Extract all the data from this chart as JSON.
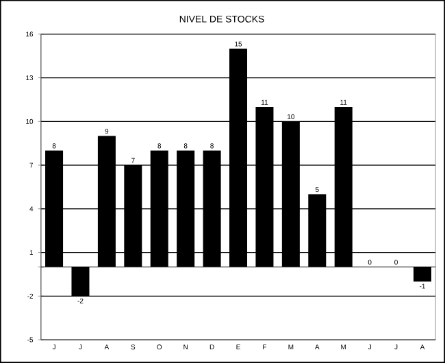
{
  "chart_data": {
    "type": "bar",
    "title": "NIVEL DE STOCKS",
    "categories": [
      "J",
      "J",
      "A",
      "S",
      "O",
      "N",
      "D",
      "E",
      "F",
      "M",
      "A",
      "M",
      "J",
      "J",
      "A"
    ],
    "values": [
      8,
      -2,
      9,
      7,
      8,
      8,
      8,
      15,
      11,
      10,
      5,
      11,
      0,
      0,
      -1
    ],
    "color": "#000000",
    "data_labels": true,
    "grid": "y",
    "ylim": [
      -5,
      16
    ],
    "yticks": [
      -5,
      -2,
      1,
      4,
      7,
      10,
      13,
      16
    ]
  }
}
